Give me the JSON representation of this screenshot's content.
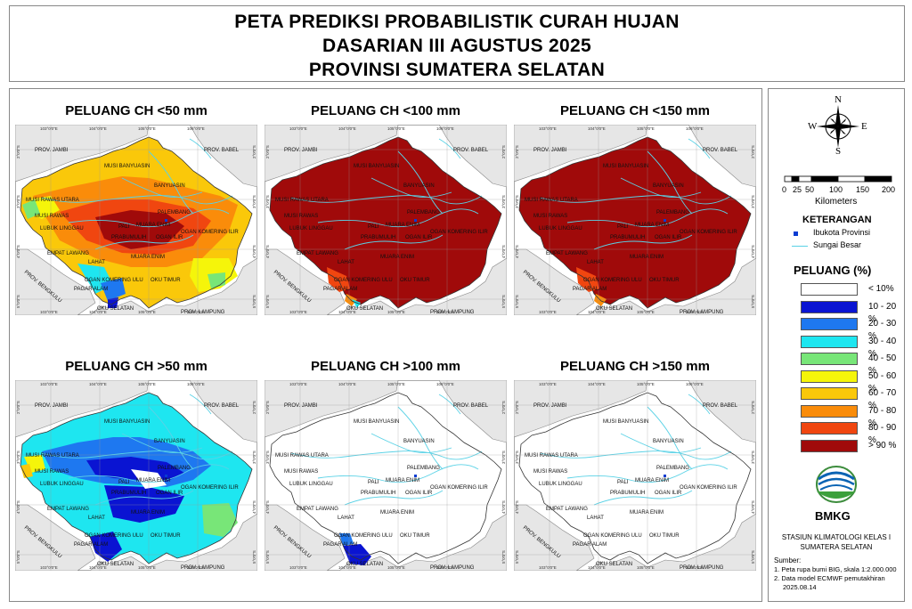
{
  "title": {
    "line1": "PETA PREDIKSI PROBABILISTIK CURAH HUJAN",
    "line2": "DASARIAN III AGUSTUS 2025",
    "line3": "PROVINSI SUMATERA SELATAN"
  },
  "axis": {
    "top": [
      "103°0'0\"E",
      "104°0'0\"E",
      "105°0'0\"E",
      "106°0'0\"E"
    ],
    "bottom": [
      "103°0'0\"E",
      "104°0'0\"E",
      "105°0'0\"E",
      "106°0'0\"E"
    ],
    "left": [
      "2°0'0\"S",
      "3°0'0\"S",
      "4°0'0\"S",
      "5°0'0\"S"
    ],
    "right": [
      "2°0'0\"S",
      "3°0'0\"S",
      "4°0'0\"S",
      "5°0'0\"S"
    ]
  },
  "map_labels": {
    "jambi": "PROV. JAMBI",
    "babel": "PROV. BABEL",
    "bengkulu": "PROV. BENGKULU",
    "lampung": "PROV. LAMPUNG",
    "musi_banyuasin": "MUSI BANYUASIN",
    "banyuasin": "BANYUASIN",
    "musi_rawas_utara": "MUSI RAWAS UTARA",
    "musi_rawas": "MUSI RAWAS",
    "palembang": "PALEMBANG",
    "lubuk_linggau": "LUBUK LINGGAU",
    "pali": "PALI",
    "muara_enim_top": "MUARA ENIM",
    "ogan_ilir": "OGAN ILIR",
    "ogan_komering_ilir": "OGAN KOMERING ILIR",
    "prabumulih": "PRABUMULIH",
    "empat_lawang": "EMPAT LAWANG",
    "muara_enim": "MUARA ENIM",
    "lahat": "LAHAT",
    "oku_timur": "OGAN KOMERING ULU",
    "oku_timur2": "OKU TIMUR",
    "pagar_alam": "PAGAR ALAM",
    "oku_selatan": "OKU SELATAN"
  },
  "panels": [
    {
      "title": "PELUANG CH <50 mm",
      "scheme": "lt50"
    },
    {
      "title": "PELUANG CH <100 mm",
      "scheme": "lt100"
    },
    {
      "title": "PELUANG CH <150 mm",
      "scheme": "lt150"
    },
    {
      "title": "PELUANG CH >50 mm",
      "scheme": "gt50"
    },
    {
      "title": "PELUANG CH >100 mm",
      "scheme": "gt100"
    },
    {
      "title": "PELUANG CH >150 mm",
      "scheme": "gt150"
    }
  ],
  "compass": {
    "n": "N",
    "s": "S",
    "e": "E",
    "w": "W"
  },
  "scale": {
    "ticks": [
      "0",
      "25",
      "50",
      "100",
      "150",
      "200"
    ],
    "unit": "Kilometers"
  },
  "keterangan": {
    "title": "KETERANGAN",
    "capital": "Ibukota Provinsi",
    "river": "Sungai Besar"
  },
  "peluang": {
    "title": "PELUANG (%)",
    "classes": [
      {
        "label": "< 10%",
        "color": "#ffffff"
      },
      {
        "label": "10 - 20 %",
        "color": "#0a14d2"
      },
      {
        "label": "20 - 30 %",
        "color": "#1e78f0"
      },
      {
        "label": "30 - 40 %",
        "color": "#1ee6f0"
      },
      {
        "label": "40 - 50 %",
        "color": "#78e678"
      },
      {
        "label": "50 - 60 %",
        "color": "#f5f50a"
      },
      {
        "label": "60 - 70 %",
        "color": "#fac80a"
      },
      {
        "label": "70 - 80 %",
        "color": "#fa8c0a"
      },
      {
        "label": "80 - 90 %",
        "color": "#f04610"
      },
      {
        "label": "> 90 %",
        "color": "#a00a0a"
      }
    ]
  },
  "logo": {
    "text": "BMKG"
  },
  "station": {
    "line1": "STASIUN KLIMATOLOGI KELAS I",
    "line2": "SUMATERA SELATAN"
  },
  "sources": {
    "title": "Sumber:",
    "line1": "1. Peta rupa bumi BIG, skala 1:2.000.000",
    "line2": "2. Data model ECMWF pemutakhiran",
    "line3": "2025.08.14"
  },
  "colors": {
    "sea": "#ffffff",
    "land_other": "#e6e6e6",
    "river": "#5ad2e6",
    "border": "#555555"
  }
}
